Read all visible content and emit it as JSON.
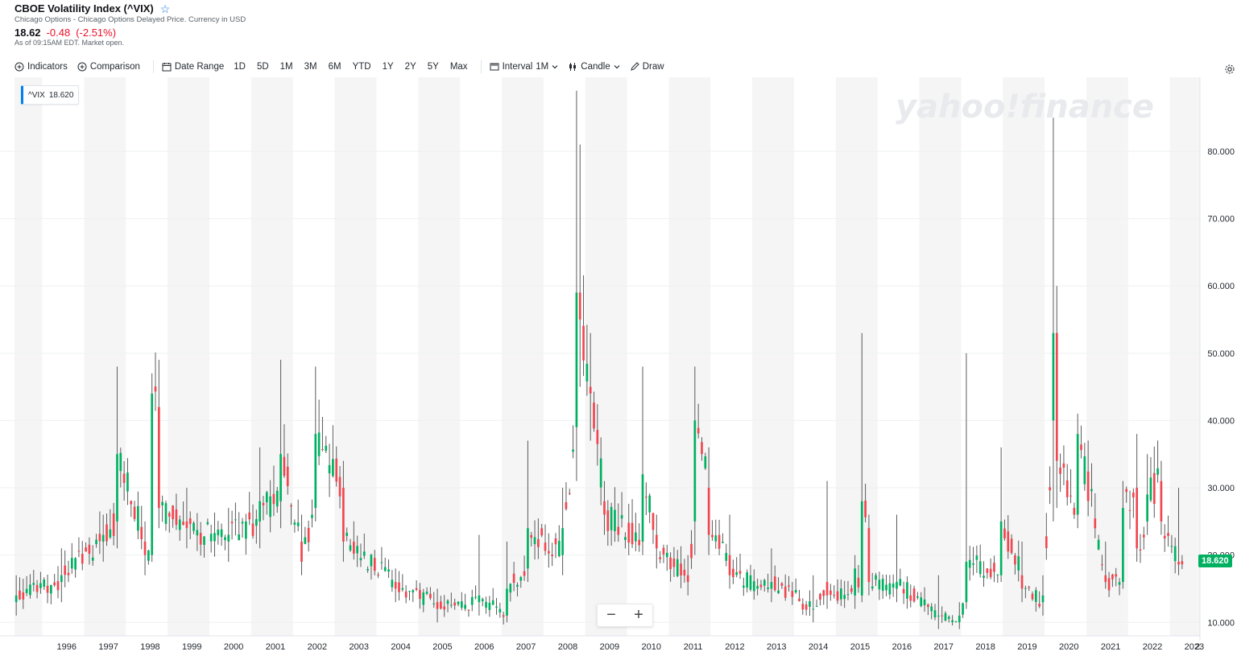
{
  "header": {
    "title": "CBOE Volatility Index (^VIX)",
    "subtitle": "Chicago Options - Chicago Options Delayed Price. Currency in USD",
    "price": "18.62",
    "change": "-0.48",
    "change_pct": "(-2.51%)",
    "as_of": "As of 09:15AM EDT. Market open."
  },
  "toolbar": {
    "indicators": "Indicators",
    "comparison": "Comparison",
    "date_range": "Date Range",
    "ranges": [
      "1D",
      "5D",
      "1M",
      "3M",
      "6M",
      "YTD",
      "1Y",
      "2Y",
      "5Y",
      "Max"
    ],
    "interval_label": "Interval",
    "interval_value": "1M",
    "chart_type": "Candle",
    "draw": "Draw"
  },
  "tooltip": {
    "symbol": "^VIX",
    "value": "18.620"
  },
  "watermark": "yahoo!finance",
  "zoom": {
    "minus": "−",
    "plus": "+"
  },
  "last_price_badge": "18.620",
  "colors": {
    "up": "#00b061",
    "down": "#f0464f",
    "wick": "#5a5a5a",
    "accent": "#0081f2",
    "band": "#f5f5f5"
  },
  "chart_data": {
    "type": "candlestick",
    "interval": "1M",
    "y_ticks": [
      "10.000",
      "20.000",
      "30.000",
      "40.000",
      "50.000",
      "60.000",
      "70.000",
      "80.000"
    ],
    "x_ticks": [
      "1996",
      "1997",
      "1998",
      "1999",
      "2000",
      "2001",
      "2002",
      "2003",
      "2004",
      "2005",
      "2006",
      "2007",
      "2008",
      "2009",
      "2010",
      "2011",
      "2012",
      "2013",
      "2014",
      "2015",
      "2016",
      "2017",
      "2018",
      "2019",
      "2020",
      "2021",
      "2022",
      "2023",
      "2"
    ],
    "ylim": [
      8,
      91
    ],
    "x_start": "1995-05",
    "last_close": 18.62,
    "anchors_yearly": [
      [
        "1995-05",
        13,
        14,
        17,
        11
      ],
      [
        "1996-06",
        16,
        17,
        21,
        13
      ],
      [
        "1997-06",
        22,
        23,
        26,
        19
      ],
      [
        "1997-10",
        25,
        35,
        48,
        21
      ],
      [
        "1998-06",
        22,
        20,
        25,
        17
      ],
      [
        "1998-08",
        20,
        44,
        47,
        19
      ],
      [
        "1998-10",
        42,
        27,
        49,
        24
      ],
      [
        "1999-06",
        25,
        24,
        30,
        21
      ],
      [
        "2000-06",
        22,
        23,
        27,
        19
      ],
      [
        "2001-03",
        25,
        28,
        36,
        21
      ],
      [
        "2001-09",
        28,
        35,
        49,
        24
      ],
      [
        "2002-03",
        22,
        19,
        26,
        17
      ],
      [
        "2002-07",
        27,
        38,
        48,
        25
      ],
      [
        "2003-03",
        30,
        22,
        34,
        19
      ],
      [
        "2004-06",
        16,
        15,
        18,
        13
      ],
      [
        "2005-06",
        13,
        12,
        15,
        10
      ],
      [
        "2006-06",
        13,
        14,
        23,
        11
      ],
      [
        "2007-02",
        11,
        15,
        22,
        10
      ],
      [
        "2007-08",
        18,
        24,
        37,
        16
      ],
      [
        "2008-06",
        20,
        24,
        30,
        17
      ],
      [
        "2008-10",
        39,
        59,
        89,
        31
      ],
      [
        "2008-11",
        59,
        55,
        81,
        45
      ],
      [
        "2009-02",
        45,
        44,
        53,
        37
      ],
      [
        "2009-06",
        28,
        26,
        31,
        23
      ],
      [
        "2010-05",
        22,
        32,
        48,
        20
      ],
      [
        "2010-09",
        23,
        21,
        26,
        18
      ],
      [
        "2011-06",
        17,
        16,
        20,
        14
      ],
      [
        "2011-08",
        25,
        40,
        48,
        20
      ],
      [
        "2011-12",
        30,
        23,
        36,
        20
      ],
      [
        "2012-06",
        20,
        17,
        26,
        15
      ],
      [
        "2013-06",
        15,
        16,
        21,
        13
      ],
      [
        "2014-06",
        12,
        12,
        17,
        10
      ],
      [
        "2014-10",
        16,
        14,
        31,
        12
      ],
      [
        "2015-06",
        14,
        18,
        20,
        12
      ],
      [
        "2015-08",
        14,
        28,
        53,
        13
      ],
      [
        "2015-10",
        24,
        16,
        26,
        14
      ],
      [
        "2016-06",
        15,
        16,
        26,
        13
      ],
      [
        "2017-06",
        11,
        11,
        17,
        9
      ],
      [
        "2017-12",
        10,
        11,
        13,
        9
      ],
      [
        "2018-02",
        13,
        19,
        50,
        12
      ],
      [
        "2018-12",
        17,
        25,
        36,
        16
      ],
      [
        "2019-06",
        17,
        15,
        22,
        13
      ],
      [
        "2019-12",
        13,
        14,
        17,
        11
      ],
      [
        "2020-03",
        40,
        53,
        85,
        25
      ],
      [
        "2020-04",
        53,
        34,
        60,
        27
      ],
      [
        "2020-10",
        26,
        38,
        41,
        24
      ],
      [
        "2021-06",
        17,
        16,
        22,
        15
      ],
      [
        "2021-11",
        16,
        27,
        31,
        15
      ],
      [
        "2022-03",
        30,
        21,
        38,
        19
      ],
      [
        "2022-06",
        25,
        29,
        35,
        23
      ],
      [
        "2022-10",
        31,
        25,
        34,
        23
      ],
      [
        "2023-03",
        19,
        18.6,
        30,
        17
      ],
      [
        "2023-04",
        19.1,
        18.62,
        20,
        17.9
      ]
    ]
  }
}
